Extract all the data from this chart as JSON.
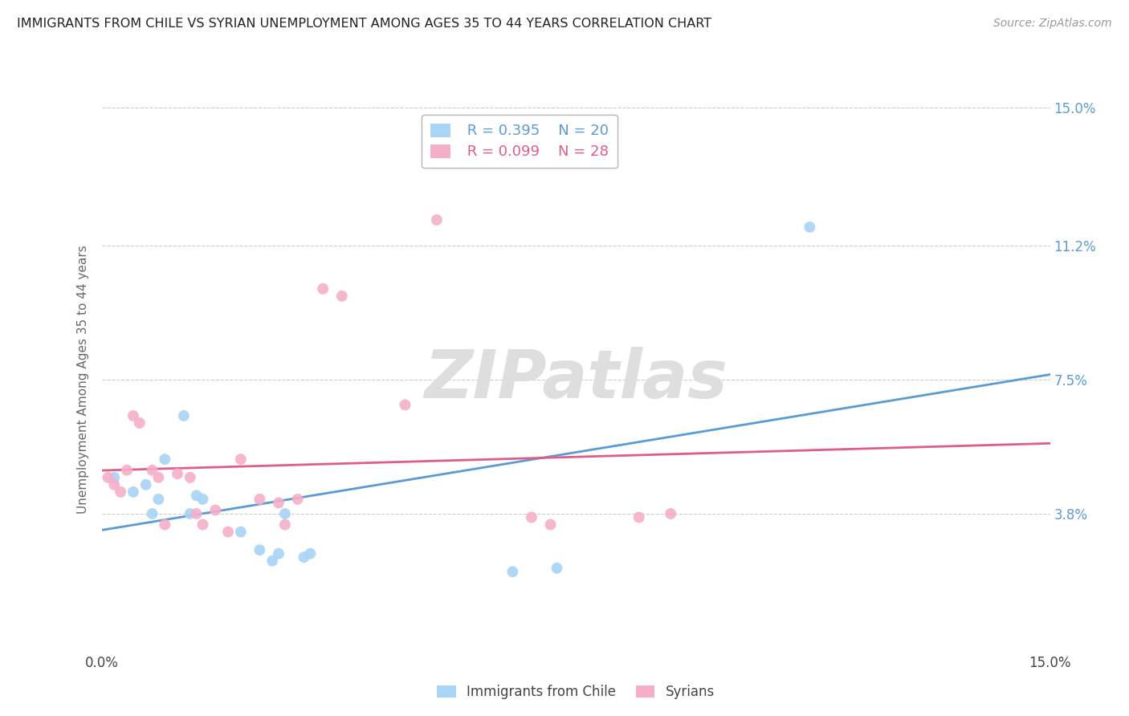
{
  "title": "IMMIGRANTS FROM CHILE VS SYRIAN UNEMPLOYMENT AMONG AGES 35 TO 44 YEARS CORRELATION CHART",
  "source": "Source: ZipAtlas.com",
  "ylabel": "Unemployment Among Ages 35 to 44 years",
  "xlim": [
    0.0,
    0.15
  ],
  "ylim": [
    0.0,
    0.15
  ],
  "xticks": [
    0.0,
    0.03,
    0.06,
    0.09,
    0.12,
    0.15
  ],
  "xticklabels": [
    "0.0%",
    "",
    "",
    "",
    "",
    "15.0%"
  ],
  "yticks": [
    0.038,
    0.075,
    0.112,
    0.15
  ],
  "yticklabels": [
    "3.8%",
    "7.5%",
    "11.2%",
    "15.0%"
  ],
  "legend_r1": "R = 0.395",
  "legend_n1": "N = 20",
  "legend_r2": "R = 0.099",
  "legend_n2": "N = 28",
  "color_chile": "#a8d4f5",
  "color_syria": "#f5aec8",
  "line_color_chile": "#5b9bd5",
  "line_color_syria": "#e05c8a",
  "tick_color": "#5b9bd5",
  "watermark_text": "ZIPatlas",
  "chile_x": [
    0.002,
    0.005,
    0.007,
    0.008,
    0.009,
    0.01,
    0.013,
    0.014,
    0.015,
    0.016,
    0.022,
    0.025,
    0.027,
    0.028,
    0.029,
    0.032,
    0.033,
    0.065,
    0.072,
    0.112
  ],
  "chile_y": [
    0.048,
    0.044,
    0.046,
    0.038,
    0.042,
    0.053,
    0.065,
    0.038,
    0.043,
    0.042,
    0.033,
    0.028,
    0.025,
    0.027,
    0.038,
    0.026,
    0.027,
    0.022,
    0.023,
    0.117
  ],
  "syria_x": [
    0.001,
    0.002,
    0.003,
    0.004,
    0.005,
    0.006,
    0.008,
    0.009,
    0.01,
    0.012,
    0.014,
    0.015,
    0.016,
    0.018,
    0.02,
    0.022,
    0.025,
    0.028,
    0.029,
    0.031,
    0.035,
    0.038,
    0.048,
    0.053,
    0.068,
    0.071,
    0.085,
    0.09
  ],
  "syria_y": [
    0.048,
    0.046,
    0.044,
    0.05,
    0.065,
    0.063,
    0.05,
    0.048,
    0.035,
    0.049,
    0.048,
    0.038,
    0.035,
    0.039,
    0.033,
    0.053,
    0.042,
    0.041,
    0.035,
    0.042,
    0.1,
    0.098,
    0.068,
    0.119,
    0.037,
    0.035,
    0.037,
    0.038
  ],
  "background_color": "#ffffff",
  "grid_color": "#cccccc",
  "legend_label_chile": "Immigrants from Chile",
  "legend_label_syria": "Syrians"
}
